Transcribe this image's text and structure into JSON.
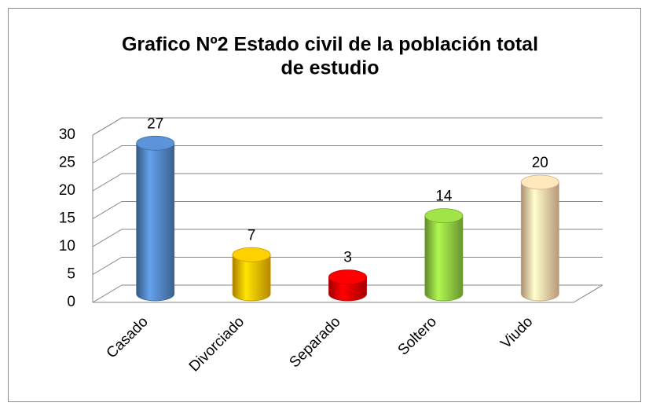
{
  "chart_data": {
    "type": "bar3d",
    "title": [
      "Grafico Nº2 Estado civil de la población total",
      "de estudio"
    ],
    "categories": [
      "Casado",
      "Divorciado",
      "Separado",
      "Soltero",
      "Viudo"
    ],
    "values": [
      27,
      7,
      3,
      14,
      20
    ],
    "colors": [
      "#4f81bd",
      "#f2b600",
      "#e00000",
      "#8cc63f",
      "#f5cba3"
    ],
    "ylim": [
      0,
      30
    ],
    "yticks": [
      0,
      5,
      10,
      15,
      20,
      25,
      30
    ],
    "grid": true
  }
}
